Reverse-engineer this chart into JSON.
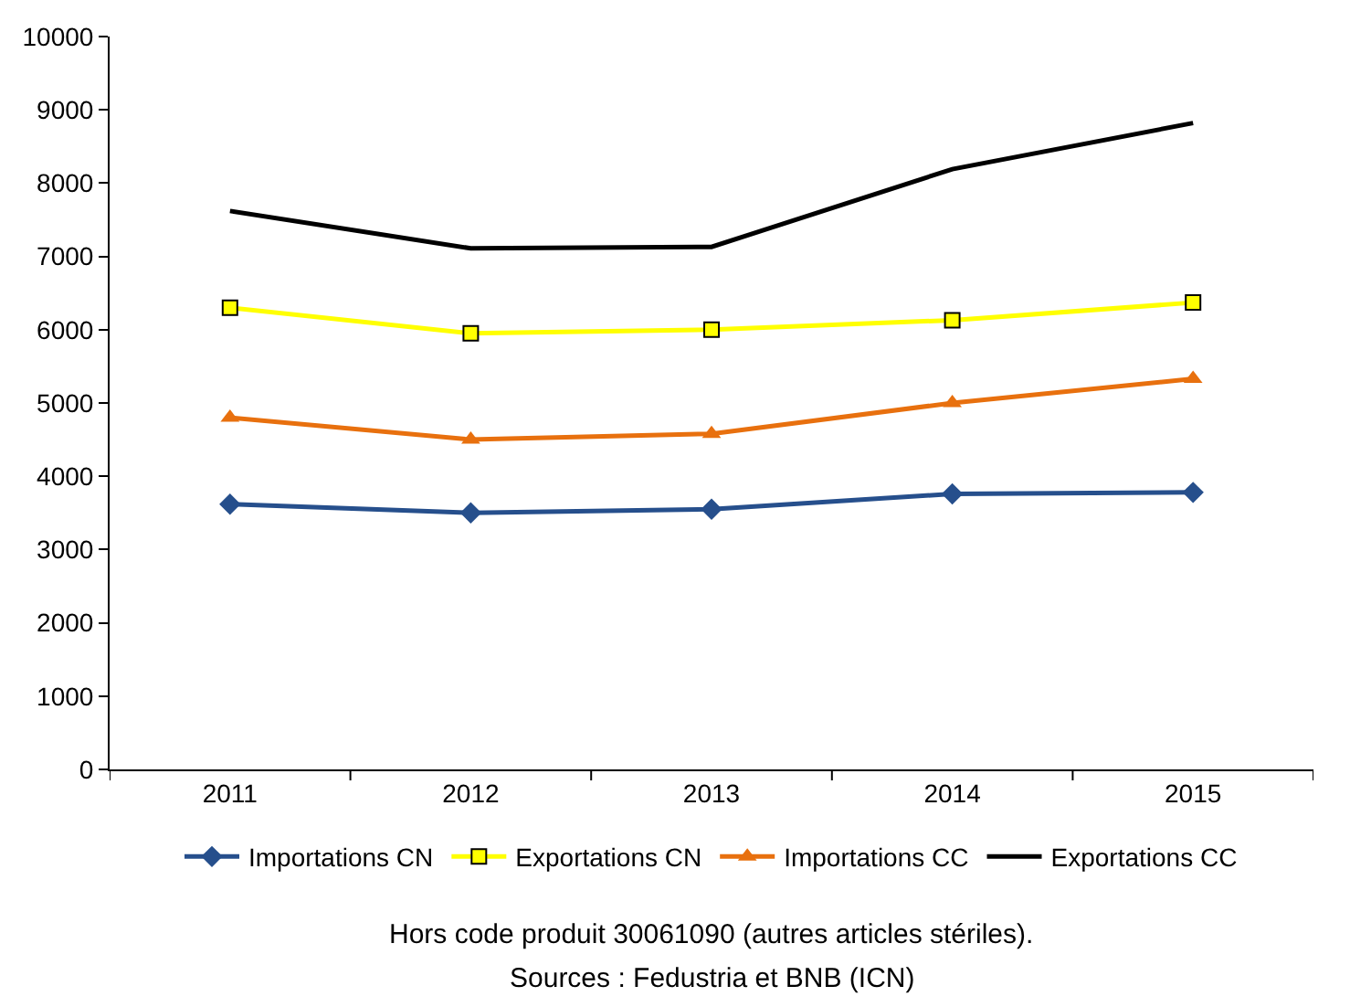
{
  "chart_data": {
    "type": "line",
    "categories": [
      "2011",
      "2012",
      "2013",
      "2014",
      "2015"
    ],
    "series": [
      {
        "name": "Importations CN",
        "color": "#264f8c",
        "marker": "diamond",
        "values": [
          3620,
          3500,
          3550,
          3760,
          3780
        ]
      },
      {
        "name": "Exportations CN",
        "color": "#ffff00",
        "marker": "square",
        "values": [
          6300,
          5950,
          6000,
          6130,
          6370
        ]
      },
      {
        "name": "Importations CC",
        "color": "#e8700e",
        "marker": "triangle",
        "values": [
          4800,
          4500,
          4580,
          5000,
          5330
        ]
      },
      {
        "name": "Exportations CC",
        "color": "#000000",
        "marker": "none",
        "values": [
          7620,
          7110,
          7130,
          8190,
          8820
        ]
      }
    ],
    "ylim": [
      0,
      10000
    ],
    "yticks": [
      0,
      1000,
      2000,
      3000,
      4000,
      5000,
      6000,
      7000,
      8000,
      9000,
      10000
    ],
    "grid": false,
    "legend": "bottom",
    "line_style": "solid",
    "annotations": [
      "Hors code produit 30061090 (autres articles stériles).",
      "Sources : Fedustria et BNB (ICN)"
    ]
  }
}
